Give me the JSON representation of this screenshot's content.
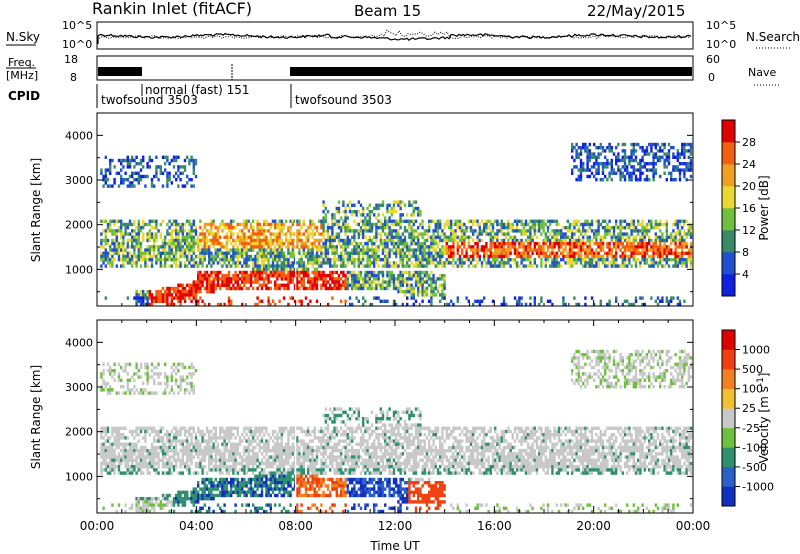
{
  "header": {
    "title": "Rankin Inlet (fitACF)",
    "beam": "Beam 15",
    "date": "22/May/2015"
  },
  "noise_panel": {
    "left_label": "N.Sky",
    "right_label": "N.Search",
    "tick_top": "10^5",
    "tick_bottom": "10^0"
  },
  "freq_panel": {
    "left_label_line1": "Freq.",
    "left_label_line2": "[MHz]",
    "left_ticks": [
      "18",
      "8"
    ],
    "right_label": "Nave",
    "right_ticks": [
      "60",
      "0"
    ]
  },
  "cpid": {
    "label": "CPID",
    "segments": [
      {
        "name": "twofsound 3503",
        "start_h": 0.0
      },
      {
        "name": "normal (fast)  151",
        "start_h": 2.0
      },
      {
        "name": "twofsound 3503",
        "start_h": 8.0
      }
    ]
  },
  "chart_data": [
    {
      "type": "heatmap",
      "panel": "power",
      "x_range_hours": [
        0,
        24
      ],
      "ylabel": "Slant Range [km]",
      "ylim": [
        180,
        4500
      ],
      "y_ticks": [
        1000,
        2000,
        3000,
        4000
      ],
      "colorbar": {
        "label": "Power [dB]",
        "ticks": [
          "4",
          "8",
          "12",
          "16",
          "20",
          "24",
          "28"
        ],
        "colors": [
          "#1020e0",
          "#2050d0",
          "#3a8a6a",
          "#70c040",
          "#e8d830",
          "#f0a020",
          "#f06010",
          "#e00000"
        ]
      }
    },
    {
      "type": "heatmap",
      "panel": "velocity",
      "x_range_hours": [
        0,
        24
      ],
      "ylabel": "Slant Range [km]",
      "ylim": [
        180,
        4500
      ],
      "y_ticks": [
        1000,
        2000,
        3000,
        4000
      ],
      "xlabel": "Time UT",
      "x_tick_labels": [
        "00:00",
        "04:00",
        "08:00",
        "12:00",
        "16:00",
        "20:00",
        "00:00"
      ],
      "colorbar": {
        "label": "Velocity [m s^-1]",
        "ticks": [
          "1000",
          "500",
          "100",
          "25",
          "-25",
          "-100",
          "-500",
          "-1000"
        ],
        "colors": [
          "#1030c0",
          "#2a60c8",
          "#2f8f6f",
          "#70c040",
          "#c8c8c8",
          "#f0c030",
          "#f08020",
          "#f04010",
          "#e00000"
        ]
      }
    }
  ]
}
